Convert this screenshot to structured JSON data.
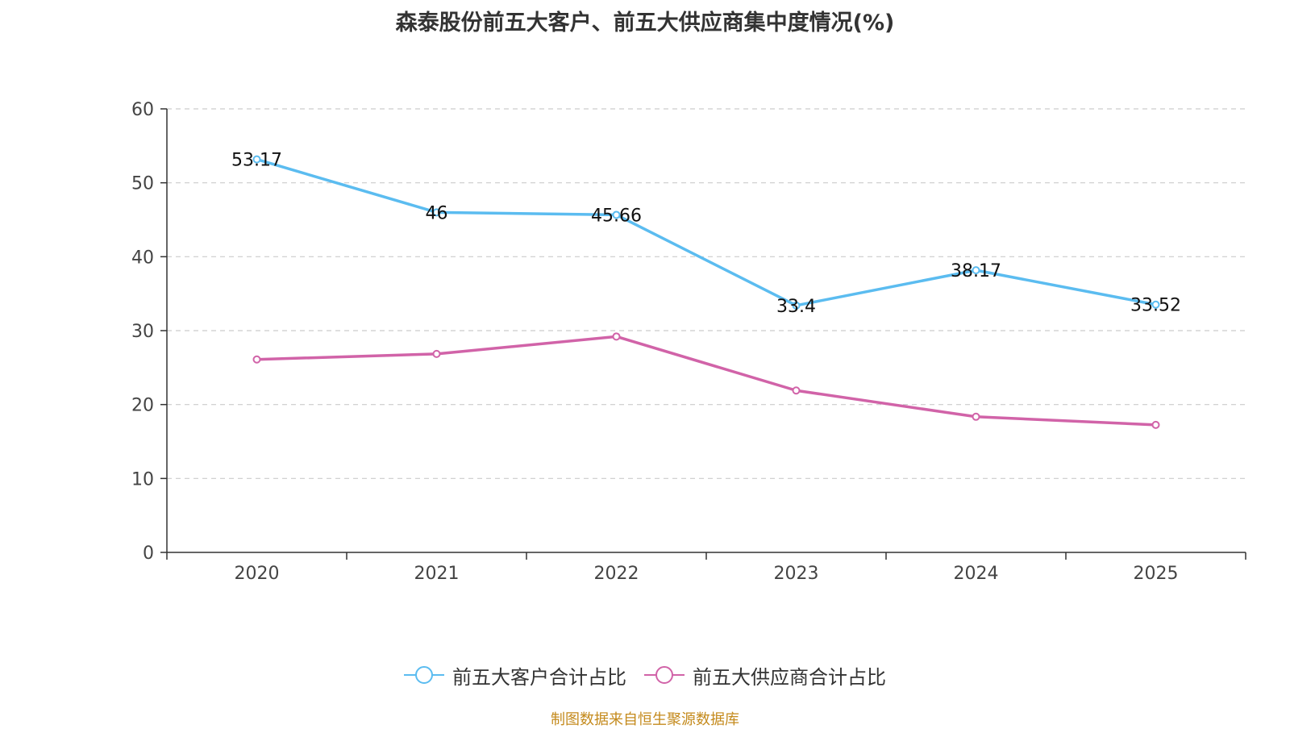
{
  "title": "森泰股份前五大客户、前五大供应商集中度情况(%)",
  "source": "制图数据来自恒生聚源数据库",
  "colors": {
    "customer": "#5bbcf0",
    "supplier": "#d163a8",
    "grid": "#cccccc",
    "axis": "#333333"
  },
  "chart_data": {
    "type": "line",
    "title": "森泰股份前五大客户、前五大供应商集中度情况(%)",
    "categories": [
      "2020",
      "2021",
      "2022",
      "2023",
      "2024",
      "2025"
    ],
    "ylim": [
      0,
      60
    ],
    "yticks": [
      0,
      10,
      20,
      30,
      40,
      50,
      60
    ],
    "grid": true,
    "legend_position": "bottom",
    "series": [
      {
        "name": "前五大客户合计占比",
        "color": "#5bbcf0",
        "values": [
          53.17,
          46,
          45.66,
          33.4,
          38.17,
          33.52
        ],
        "labels": [
          "53.17",
          "46",
          "45.66",
          "33.4",
          "38.17",
          "33.52"
        ]
      },
      {
        "name": "前五大供应商合计占比",
        "color": "#d163a8",
        "values": [
          26.1,
          26.85,
          29.2,
          21.9,
          18.35,
          17.25
        ],
        "labels": []
      }
    ]
  },
  "legend": [
    {
      "name": "前五大客户合计占比",
      "color": "#5bbcf0"
    },
    {
      "name": "前五大供应商合计占比",
      "color": "#d163a8"
    }
  ]
}
